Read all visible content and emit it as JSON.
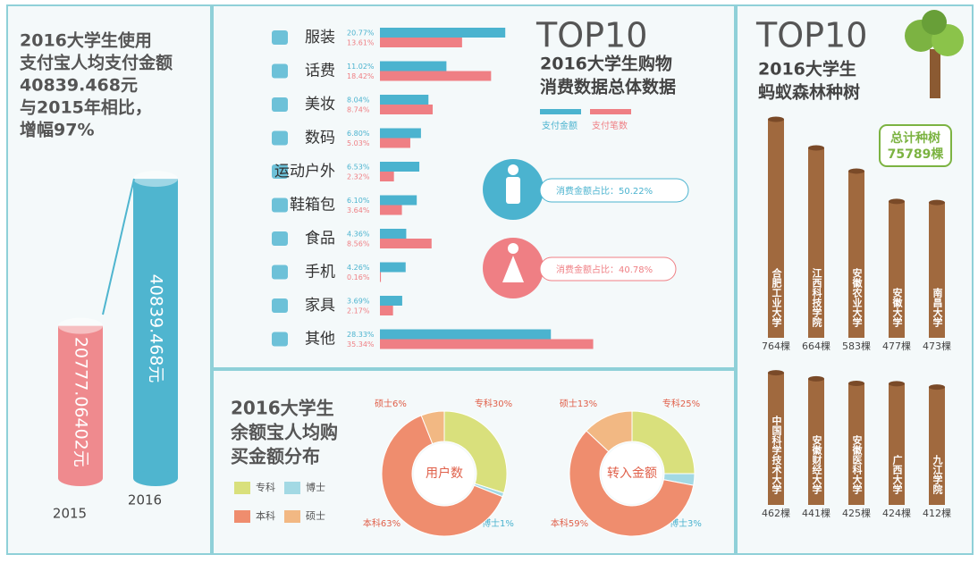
{
  "chart_data": [
    {
      "type": "cylinder",
      "title_lines": [
        "2016大学生使用",
        "支付宝人均支付金额",
        "40839.468元",
        "与2015年相比，",
        "增幅97%"
      ],
      "categories": [
        "2015",
        "2016"
      ],
      "values": [
        20777.06402,
        40839.468
      ],
      "value_labels": [
        "20777.06402元",
        "40839.468元"
      ],
      "colors": [
        "#ef8a8e",
        "#4fb5cf"
      ]
    },
    {
      "type": "hbar",
      "title": "TOP10",
      "subtitle_lines": [
        "2016大学生购物",
        "消费数据总体数据"
      ],
      "categories": [
        "服装",
        "话费",
        "美妆",
        "数码",
        "运动户外",
        "鞋箱包",
        "食品",
        "手机",
        "家具",
        "其他"
      ],
      "series": [
        {
          "name": "支付金额",
          "color": "#4bb3cf",
          "values": [
            20.77,
            11.02,
            8.04,
            6.8,
            6.53,
            6.1,
            4.36,
            4.26,
            3.69,
            28.33
          ],
          "value_labels": [
            "20.77%",
            "11.02%",
            "8.04%",
            "6.80%",
            "6.53%",
            "6.10%",
            "4.36%",
            "4.26%",
            "3.69%",
            "28.33%"
          ]
        },
        {
          "name": "支付笔数",
          "color": "#ef7f84",
          "values": [
            13.61,
            18.42,
            8.74,
            5.03,
            2.32,
            3.64,
            8.56,
            0.16,
            2.17,
            35.34
          ],
          "value_labels": [
            "13.61%",
            "18.42%",
            "8.74%",
            "5.03%",
            "2.32%",
            "3.64%",
            "8.56%",
            "0.16%",
            "2.17%",
            "35.34%"
          ]
        }
      ],
      "annotations": [
        "消费金额占比：50.22%",
        "消费金额占比：40.78%"
      ]
    },
    {
      "type": "donut",
      "title_lines": [
        "2016大学生",
        "余额宝人均购",
        "买金额分布"
      ],
      "categories": [
        "专科",
        "博士",
        "本科",
        "硕士"
      ],
      "colors": [
        "#d9e07c",
        "#a3d9e4",
        "#ef8d6e",
        "#f2b883"
      ],
      "series": [
        {
          "name": "用户数",
          "values": [
            30,
            1,
            63,
            6
          ],
          "value_labels": [
            "专科30%",
            "博士1%",
            "本科63%",
            "硕士6%"
          ]
        },
        {
          "name": "转入金额",
          "values": [
            25,
            3,
            59,
            13
          ],
          "value_labels": [
            "专科25%",
            "博士3%",
            "本科59%",
            "硕士13%"
          ]
        }
      ]
    },
    {
      "type": "trees",
      "title": "TOP10",
      "subtitle_lines": [
        "2016大学生",
        "蚂蚁森林种树"
      ],
      "note_lines": [
        "总计种树",
        "75789棵"
      ],
      "categories": [
        "合肥工业大学",
        "江西科技学院",
        "安徽农业大学",
        "安徽大学",
        "南昌大学",
        "中国科学技术大学",
        "安徽财经大学",
        "安徽医科大学",
        "广西大学",
        "九江学院"
      ],
      "values": [
        764,
        664,
        583,
        477,
        473,
        462,
        441,
        425,
        424,
        412
      ],
      "value_labels": [
        "764棵",
        "664棵",
        "583棵",
        "477棵",
        "473棵",
        "462棵",
        "441棵",
        "425棵",
        "424棵",
        "412棵"
      ],
      "color": "#a0693e"
    }
  ]
}
